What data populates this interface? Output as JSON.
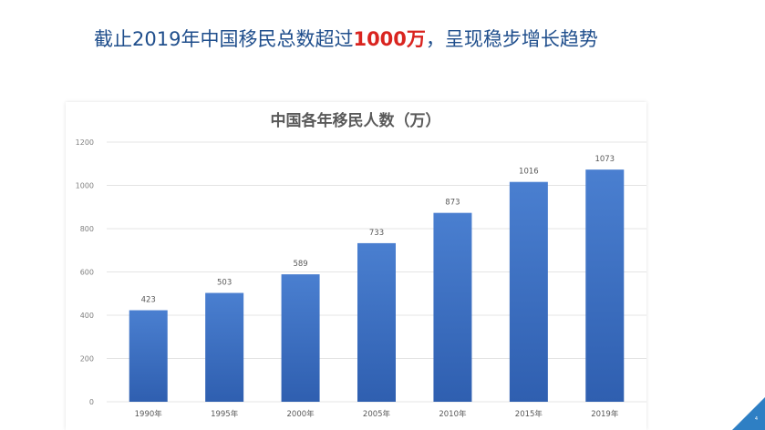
{
  "slide": {
    "title_before": "截止2019年中国移民总数超过",
    "title_highlight": "1000万",
    "title_after": "，呈现稳步增长趋势",
    "page_number": "4",
    "accent_color": "#2e7fc4",
    "highlight_color": "#d9241f"
  },
  "chart_data": {
    "type": "bar",
    "title": "中国各年移民人数（万）",
    "categories": [
      "1990年",
      "1995年",
      "2000年",
      "2005年",
      "2010年",
      "2015年",
      "2019年"
    ],
    "values": [
      423,
      503,
      589,
      733,
      873,
      1016,
      1073
    ],
    "data_labels": [
      "423",
      "503",
      "589",
      "733",
      "873",
      "1016",
      "1073"
    ],
    "ylim": [
      0,
      1200
    ],
    "yticks": [
      0,
      200,
      400,
      600,
      800,
      1000,
      1200
    ],
    "grid": true,
    "legend": "none",
    "bar_color_top": "#4a7fd0",
    "bar_color_bottom": "#2f5fb0"
  }
}
